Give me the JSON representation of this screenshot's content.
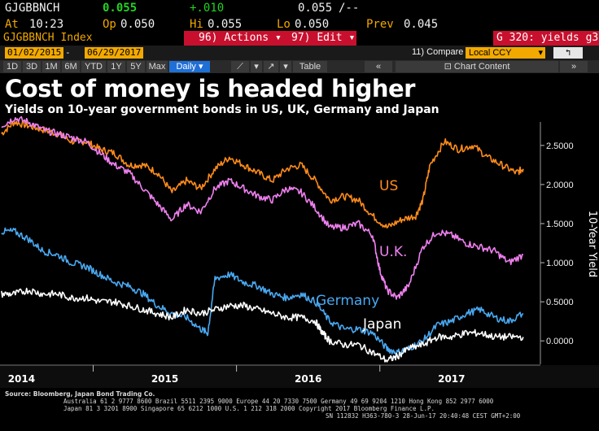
{
  "ticker": {
    "symbol": "GJGBBNCH",
    "last": "0.055",
    "change": "+.010",
    "last_right": "0.055",
    "last_right_suffix": "/--",
    "at_label": "At",
    "at_time": "10:23",
    "op_label": "Op",
    "op_value": "0.050",
    "hi_label": "Hi",
    "hi_value": "0.055",
    "lo_label": "Lo",
    "lo_value": "0.050",
    "prev_label": "Prev",
    "prev_value": "0.045"
  },
  "function_bar": {
    "security": "GJGBBNCH Index",
    "actions_num": "96)",
    "actions_label": "Actions",
    "edit_num": "97)",
    "edit_label": "Edit",
    "page_label": "G 320: yields g3"
  },
  "dates": {
    "start": "01/02/2015",
    "dash": "-",
    "end": "06/29/2017",
    "compare_num": "11)",
    "compare_label": "Compare",
    "currency": "Local CCY",
    "back_icon": "back-arrow-icon"
  },
  "periods": [
    "1D",
    "3D",
    "1M",
    "6M",
    "YTD",
    "1Y",
    "5Y",
    "Max",
    "Daily"
  ],
  "period_active": "Daily",
  "toolbar": {
    "table_label": "Table",
    "chart_content_label": "Chart Content"
  },
  "chart_data": {
    "type": "line",
    "title": "Cost of money is headed higher",
    "subtitle": "Yields on 10-year government bonds in US, UK, Germany and Japan",
    "ylabel": "10-Year Yield",
    "ylim": [
      -0.3,
      2.8
    ],
    "yticks": [
      "2.5000",
      "2.0000",
      "1.5000",
      "1.0000",
      "0.5000",
      "0.0000"
    ],
    "ytick_values": [
      2.5,
      2.0,
      1.5,
      1.0,
      0.5,
      0.0
    ],
    "xlim": [
      2013.85,
      2017.62
    ],
    "xtick_labels": [
      "2014",
      "2015",
      "2016",
      "2017"
    ],
    "xtick_positions": [
      2014.0,
      2015.0,
      2016.0,
      2017.0
    ],
    "series": [
      {
        "name": "US",
        "color": "#ff8c1a",
        "x": [
          2013.86,
          2013.95,
          2014.05,
          2014.15,
          2014.25,
          2014.35,
          2014.45,
          2014.55,
          2014.65,
          2014.75,
          2014.85,
          2014.95,
          2015.05,
          2015.15,
          2015.25,
          2015.35,
          2015.45,
          2015.55,
          2015.65,
          2015.75,
          2015.85,
          2015.95,
          2016.05,
          2016.15,
          2016.25,
          2016.35,
          2016.45,
          2016.55,
          2016.65,
          2016.75,
          2016.8,
          2016.85,
          2016.95,
          2017.05,
          2017.15,
          2017.25,
          2017.35,
          2017.45,
          2017.5
        ],
        "values": [
          2.65,
          2.8,
          2.75,
          2.7,
          2.65,
          2.55,
          2.55,
          2.45,
          2.4,
          2.25,
          2.25,
          2.15,
          1.9,
          2.05,
          1.95,
          2.2,
          2.35,
          2.25,
          2.15,
          2.05,
          2.2,
          2.25,
          2.05,
          1.8,
          1.85,
          1.8,
          1.6,
          1.45,
          1.55,
          1.6,
          1.8,
          2.25,
          2.55,
          2.45,
          2.5,
          2.35,
          2.25,
          2.15,
          2.2
        ]
      },
      {
        "name": "U.K.",
        "color": "#f080f0",
        "x": [
          2013.86,
          2013.95,
          2014.05,
          2014.15,
          2014.25,
          2014.35,
          2014.45,
          2014.55,
          2014.65,
          2014.75,
          2014.85,
          2014.95,
          2015.05,
          2015.15,
          2015.25,
          2015.35,
          2015.45,
          2015.55,
          2015.65,
          2015.75,
          2015.85,
          2015.95,
          2016.05,
          2016.15,
          2016.25,
          2016.35,
          2016.45,
          2016.5,
          2016.55,
          2016.62,
          2016.7,
          2016.8,
          2016.9,
          2017.0,
          2017.1,
          2017.2,
          2017.3,
          2017.4,
          2017.5
        ],
        "values": [
          2.75,
          2.85,
          2.8,
          2.7,
          2.65,
          2.6,
          2.55,
          2.4,
          2.25,
          2.15,
          1.95,
          1.75,
          1.55,
          1.75,
          1.65,
          1.95,
          2.05,
          1.95,
          1.85,
          1.8,
          1.95,
          1.9,
          1.7,
          1.45,
          1.45,
          1.5,
          1.35,
          0.9,
          0.65,
          0.55,
          0.7,
          1.2,
          1.4,
          1.35,
          1.25,
          1.2,
          1.15,
          1.0,
          1.1
        ]
      },
      {
        "name": "Germany",
        "color": "#49a9f2",
        "x": [
          2013.86,
          2013.95,
          2014.05,
          2014.15,
          2014.25,
          2014.35,
          2014.45,
          2014.55,
          2014.65,
          2014.75,
          2014.85,
          2014.95,
          2015.05,
          2015.15,
          2015.25,
          2015.3,
          2015.35,
          2015.45,
          2015.55,
          2015.65,
          2015.75,
          2015.85,
          2015.95,
          2016.05,
          2016.15,
          2016.25,
          2016.35,
          2016.45,
          2016.55,
          2016.62,
          2016.7,
          2016.8,
          2016.9,
          2017.0,
          2017.1,
          2017.2,
          2017.3,
          2017.4,
          2017.5
        ],
        "values": [
          1.4,
          1.4,
          1.3,
          1.15,
          1.1,
          1.0,
          0.95,
          0.85,
          0.75,
          0.7,
          0.6,
          0.45,
          0.35,
          0.3,
          0.15,
          0.1,
          0.8,
          0.85,
          0.75,
          0.7,
          0.6,
          0.55,
          0.6,
          0.5,
          0.25,
          0.15,
          0.15,
          0.1,
          -0.1,
          -0.15,
          -0.1,
          0.0,
          0.2,
          0.25,
          0.35,
          0.4,
          0.3,
          0.25,
          0.35
        ]
      },
      {
        "name": "Japan",
        "color": "#ffffff",
        "x": [
          2013.86,
          2013.95,
          2014.05,
          2014.15,
          2014.25,
          2014.35,
          2014.45,
          2014.55,
          2014.65,
          2014.75,
          2014.85,
          2014.95,
          2015.05,
          2015.15,
          2015.25,
          2015.35,
          2015.45,
          2015.55,
          2015.65,
          2015.75,
          2015.85,
          2015.95,
          2016.05,
          2016.1,
          2016.15,
          2016.25,
          2016.35,
          2016.45,
          2016.55,
          2016.62,
          2016.7,
          2016.8,
          2016.9,
          2017.0,
          2017.1,
          2017.2,
          2017.3,
          2017.4,
          2017.5
        ],
        "values": [
          0.6,
          0.6,
          0.65,
          0.6,
          0.6,
          0.55,
          0.55,
          0.5,
          0.5,
          0.45,
          0.4,
          0.35,
          0.3,
          0.4,
          0.35,
          0.4,
          0.45,
          0.45,
          0.4,
          0.35,
          0.3,
          0.3,
          0.25,
          0.1,
          0.0,
          -0.05,
          -0.05,
          -0.15,
          -0.25,
          -0.2,
          -0.1,
          -0.05,
          0.05,
          0.05,
          0.1,
          0.1,
          0.05,
          0.05,
          0.05
        ]
      }
    ],
    "annotations": [
      "US",
      "U.K.",
      "Germany",
      "Japan"
    ],
    "grid": false,
    "legend": "inline labels"
  },
  "footer": {
    "source": "Source: Bloomberg, Japan Bond Trading Co.",
    "line1": "Australia 61 2 9777 8600 Brazil 5511 2395 9000 Europe 44 20 7330 7500 Germany 49 69 9204 1210 Hong Kong 852 2977 6000",
    "line2": "Japan 81 3 3201 8900        Singapore 65 6212 1000       U.S. 1 212 318 2000        Copyright 2017 Bloomberg Finance L.P.",
    "line3": "SN 112832 H363-780-3 28-Jun-17 20:40:48 CEST GMT+2:00"
  }
}
